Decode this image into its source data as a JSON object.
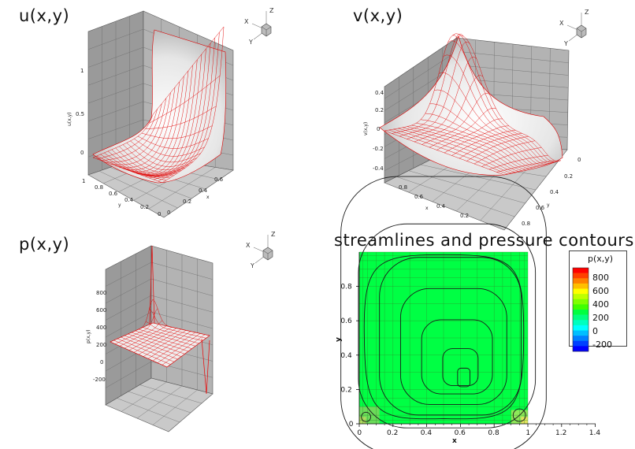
{
  "panels": {
    "u_title": "u(x,y)",
    "v_title": "v(x,y)",
    "p_title": "p(x,y)",
    "stream_title": "streamlines and pressure contours"
  },
  "triad": {
    "x": "X",
    "y": "Y",
    "z": "Z"
  },
  "u_ticks": {
    "z": [
      "1",
      "0.5",
      "0"
    ],
    "zlabel": "u(x,y)",
    "front_left": [
      "1",
      "0.8",
      "0.6",
      "0.4",
      "0.2",
      "0"
    ],
    "front_left_label": "y",
    "front_right": [
      "0",
      "0.2",
      "0.4",
      "0.6"
    ],
    "front_right_label": "x"
  },
  "v_ticks": {
    "z": [
      "0.4",
      "0.2",
      "0",
      "-0.2",
      "-0.4"
    ],
    "zlabel": "v(x,y)",
    "front_left": [
      "0.8",
      "0.6",
      "0.4",
      "0.2"
    ],
    "front_left_label": "x",
    "front_right": [
      "0",
      "0.2",
      "0.4",
      "0.6",
      "0.8"
    ],
    "front_right_label": "y"
  },
  "p_ticks": {
    "z": [
      "800",
      "600",
      "400",
      "200",
      "0",
      "-200"
    ],
    "zlabel": "p(x,y)"
  },
  "chart_data": {
    "type": "contour",
    "title": "streamlines and pressure contours",
    "xlabel": "x",
    "ylabel": "y",
    "xlim": [
      0,
      1.4
    ],
    "ylim": [
      0,
      1
    ],
    "xticks": [
      "0",
      "0.2",
      "0.4",
      "0.6",
      "0.8",
      "1",
      "1.2",
      "1.4"
    ],
    "yticks": [
      "0",
      "0.2",
      "0.4",
      "0.6",
      "0.8"
    ],
    "vortex_center": [
      0.62,
      0.27
    ],
    "legend": {
      "title": "p(x,y)",
      "levels": [
        "800",
        "600",
        "400",
        "200",
        "0",
        "-200"
      ],
      "colors": [
        "#ff0000",
        "#ff4000",
        "#ff8000",
        "#ffbf00",
        "#ffff00",
        "#bfff00",
        "#80ff00",
        "#40ff00",
        "#00ff40",
        "#00ff80",
        "#00ffbf",
        "#00ffff",
        "#00bfff",
        "#0080ff",
        "#0040ff",
        "#0000ff"
      ]
    },
    "fill_color": "#00ff44"
  }
}
